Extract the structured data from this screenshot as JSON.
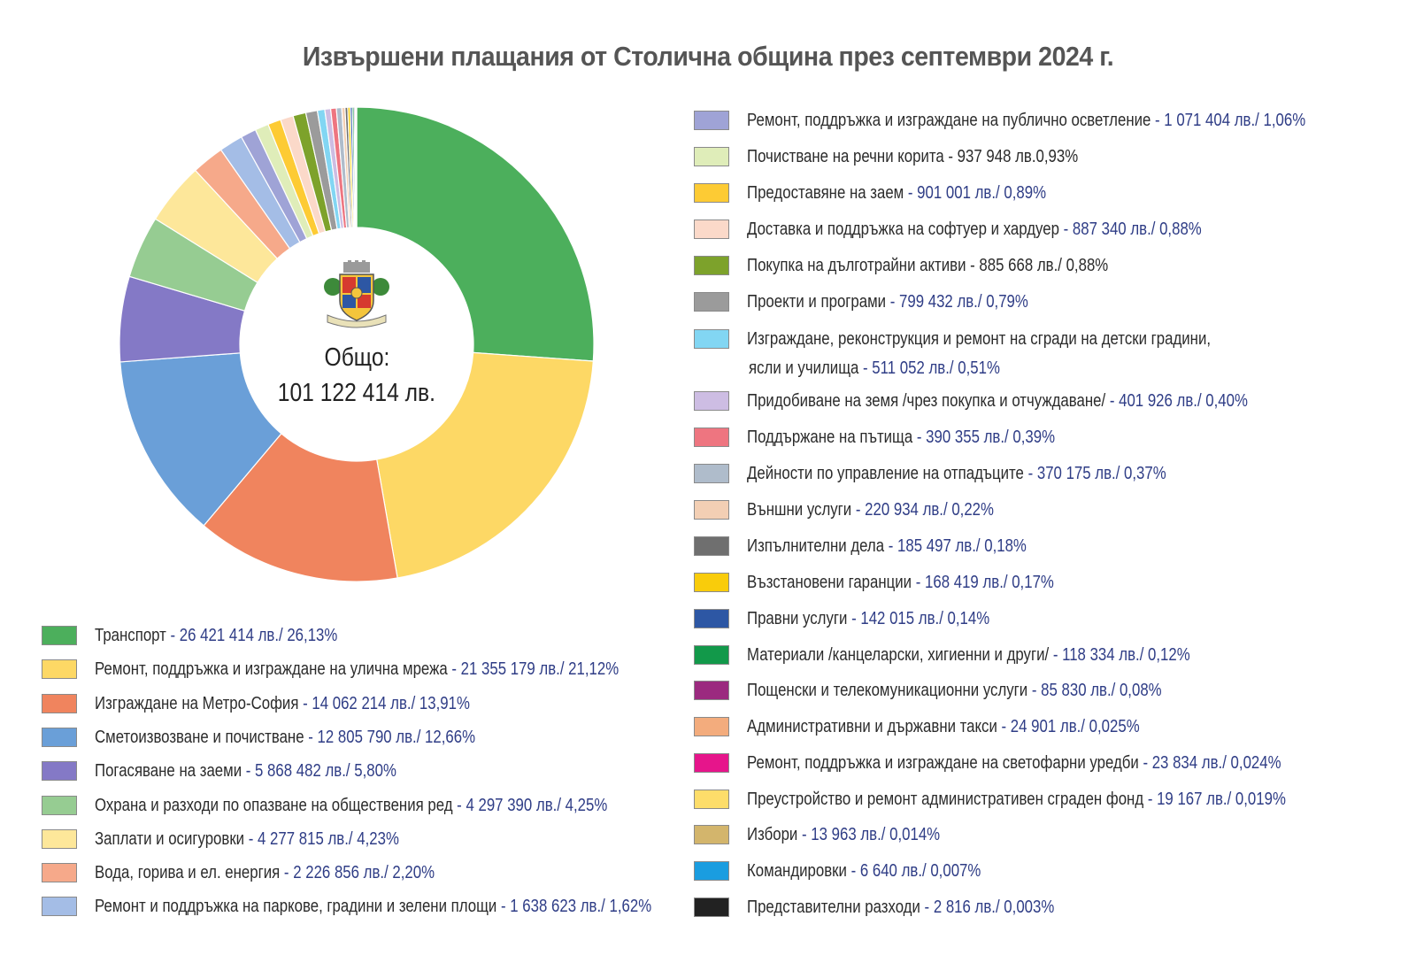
{
  "title": "Извършени плащания от Столична община през септември 2024 г.",
  "center": {
    "label": "Общо:",
    "total": "101 122 414 лв."
  },
  "chart_data": {
    "type": "pie",
    "variant": "donut",
    "title": "Извършени плащания от Столична община през септември 2024 г.",
    "total": 101122414,
    "unit": "лв.",
    "legend_placement": "bottom-left and right",
    "series": [
      {
        "name": "Транспорт",
        "value": 26421414,
        "percent": 26.13,
        "text": "26 421 414 лв./ 26,13%",
        "color": "#4caf5c",
        "blue": true
      },
      {
        "name": "Ремонт, поддръжка и изграждане на улична мрежа",
        "value": 21355179,
        "percent": 21.12,
        "text": "21 355 179 лв./ 21,12%",
        "color": "#fdd865",
        "blue": true
      },
      {
        "name": "Изграждане на Метро-София",
        "value": 14062214,
        "percent": 13.91,
        "text": "14 062 214 лв./ 13,91%",
        "color": "#f0845e",
        "blue": true
      },
      {
        "name": "Сметоизвозване и почистване",
        "value": 12805790,
        "percent": 12.66,
        "text": "12 805 790 лв./ 12,66%",
        "color": "#6a9fd8",
        "blue": true
      },
      {
        "name": "Погасяване на заеми",
        "value": 5868482,
        "percent": 5.8,
        "text": "5 868 482 лв./ 5,80%",
        "color": "#8479c6",
        "blue": true
      },
      {
        "name": "Охрана и разходи по опазване на обществения ред",
        "value": 4297390,
        "percent": 4.25,
        "text": "4 297 390 лв./ 4,25%",
        "color": "#96cc92",
        "blue": true
      },
      {
        "name": "Заплати и осигуровки",
        "value": 4277815,
        "percent": 4.23,
        "text": "4 277 815 лв./ 4,23%",
        "color": "#fde79a",
        "blue": true
      },
      {
        "name": "Вода, горива и ел. енергия",
        "value": 2226856,
        "percent": 2.2,
        "text": "2 226 856 лв./ 2,20%",
        "color": "#f6a98a",
        "blue": true
      },
      {
        "name": "Ремонт и поддръжка на паркове, градини и зелени площи",
        "value": 1638623,
        "percent": 1.62,
        "text": "1 638 623 лв./ 1,62%",
        "color": "#a4bde6",
        "blue": true
      },
      {
        "name": "Ремонт, поддръжка и изграждане на публично осветление",
        "value": 1071404,
        "percent": 1.06,
        "text": "1 071 404 лв./ 1,06%",
        "color": "#9fa3d6",
        "blue": true
      },
      {
        "name": "Почистване на речни корита",
        "value": 937948,
        "percent": 0.93,
        "text": "937 948 лв.0,93%",
        "color": "#dfedb9",
        "blue": false
      },
      {
        "name": "Предоставяне на заем",
        "value": 901001,
        "percent": 0.89,
        "text": "901 001 лв./ 0,89%",
        "color": "#fdcb34",
        "blue": true
      },
      {
        "name": "Доставка и поддръжка на софтуер и хардуер",
        "value": 887340,
        "percent": 0.88,
        "text": "887 340 лв./ 0,88%",
        "color": "#fbd9c9",
        "blue": true
      },
      {
        "name": "Покупка на дълготрайни активи",
        "value": 885668,
        "percent": 0.88,
        "text": "885 668 лв./ 0,88%",
        "color": "#7da22b",
        "blue": false
      },
      {
        "name": "Проекти и програми",
        "value": 799432,
        "percent": 0.79,
        "text": "799 432 лв./ 0,79%",
        "color": "#9b9b9b",
        "blue": true
      },
      {
        "name": "Изграждане, реконструкция и ремонт на сгради на детски градини,",
        "name2": "ясли и училища",
        "value": 511052,
        "percent": 0.51,
        "text": "511 052 лв./ 0,51%",
        "color": "#82d6f3",
        "blue": true
      },
      {
        "name": "Придобиване на земя /чрез покупка и отчуждаване/",
        "value": 401926,
        "percent": 0.4,
        "text": "401 926 лв./ 0,40%",
        "color": "#cdbde3",
        "blue": true
      },
      {
        "name": "Поддържане на пътища",
        "value": 390355,
        "percent": 0.39,
        "text": "390 355 лв./ 0,39%",
        "color": "#ee7580",
        "blue": true
      },
      {
        "name": "Дейности по управление на отпадъците",
        "value": 370175,
        "percent": 0.37,
        "text": "370 175 лв./ 0,37%",
        "color": "#afbccb",
        "blue": true
      },
      {
        "name": "Външни услуги",
        "value": 220934,
        "percent": 0.22,
        "text": "220 934 лв./ 0,22%",
        "color": "#f3cfb4",
        "blue": true
      },
      {
        "name": "Изпълнителни дела",
        "value": 185497,
        "percent": 0.18,
        "text": "185 497 лв./ 0,18%",
        "color": "#6f6f6f",
        "blue": true
      },
      {
        "name": "Възстановени гаранции",
        "value": 168419,
        "percent": 0.17,
        "text": "168 419 лв./ 0,17%",
        "color": "#f9cc0b",
        "blue": true
      },
      {
        "name": "Правни услуги",
        "value": 142015,
        "percent": 0.14,
        "text": "142 015 лв./ 0,14%",
        "color": "#2d57a4",
        "blue": true
      },
      {
        "name": "Материали /канцеларски, хигиенни и други/",
        "value": 118334,
        "percent": 0.12,
        "text": "118 334 лв./ 0,12%",
        "color": "#12994a",
        "blue": true
      },
      {
        "name": "Пощенски и телекомуникационни услуги",
        "value": 85830,
        "percent": 0.08,
        "text": "85 830 лв./ 0,08%",
        "color": "#9b2a7f",
        "blue": true
      },
      {
        "name": "Административни и държавни такси",
        "value": 24901,
        "percent": 0.025,
        "text": "24 901 лв./ 0,025%",
        "color": "#f3ac7d",
        "blue": true
      },
      {
        "name": "Ремонт, поддръжка и изграждане на светофарни уредби",
        "value": 23834,
        "percent": 0.024,
        "text": "23 834 лв./ 0,024%",
        "color": "#e6158b",
        "blue": true
      },
      {
        "name": "Преустройство и ремонт административен сграден фонд",
        "value": 19167,
        "percent": 0.019,
        "text": "19 167 лв./ 0,019%",
        "color": "#fddd6a",
        "blue": true
      },
      {
        "name": "Избори",
        "value": 13963,
        "percent": 0.014,
        "text": "13 963 лв./ 0,014%",
        "color": "#d3b56c",
        "blue": true
      },
      {
        "name": "Командировки",
        "value": 6640,
        "percent": 0.007,
        "text": "6 640 лв./ 0,007%",
        "color": "#1a9de0",
        "blue": true
      },
      {
        "name": "Представителни разходи",
        "value": 2816,
        "percent": 0.003,
        "text": "2 816 лв./ 0,003%",
        "color": "#222222",
        "blue": true
      }
    ]
  }
}
